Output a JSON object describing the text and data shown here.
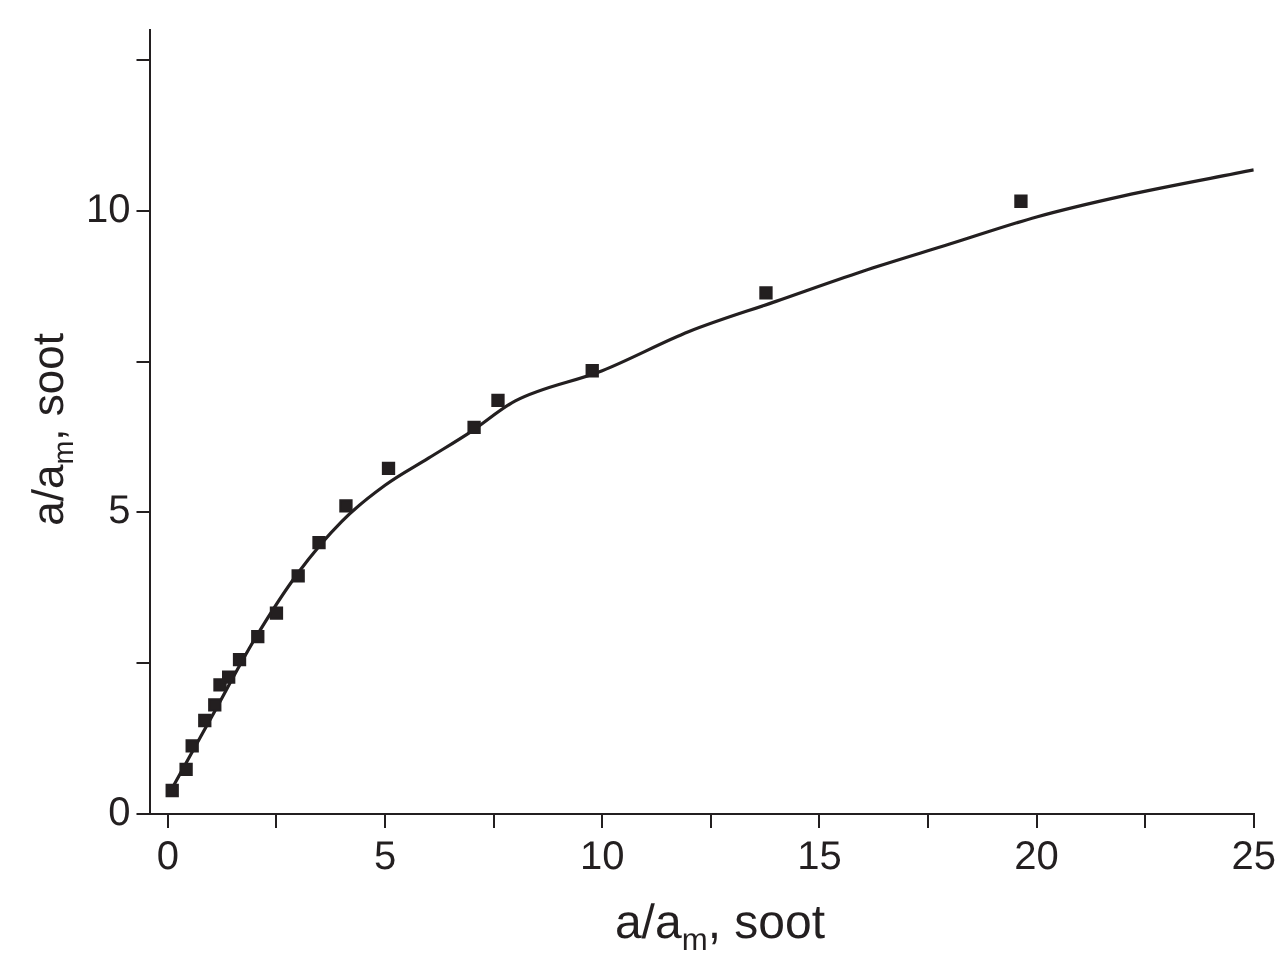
{
  "chart_data": {
    "type": "scatter",
    "xlabel": "a/a$_{m}$, soot",
    "ylabel": "a/a$_{m}$, soot",
    "xlim": [
      -0.4,
      25
    ],
    "ylim": [
      0,
      13
    ],
    "xticks": [
      0,
      {
        "value": 2.5,
        "label": null
      },
      5,
      {
        "value": 7.5,
        "label": null
      },
      10,
      {
        "value": 12.5,
        "label": null
      },
      15,
      {
        "value": 17.5,
        "label": null
      },
      20,
      {
        "value": 22.5,
        "label": null
      },
      25
    ],
    "yticks": [
      0,
      {
        "value": 2.5,
        "label": null
      },
      5,
      {
        "value": 7.5,
        "label": null
      },
      10,
      {
        "value": 12.5,
        "label": null
      }
    ],
    "grid": false,
    "legend": false,
    "series": [
      {
        "marker": "square",
        "color": "#231f20",
        "x": [
          0.1,
          0.42,
          0.56,
          0.85,
          1.08,
          1.2,
          1.4,
          1.65,
          2.07,
          2.5,
          3.0,
          3.48,
          4.1,
          5.08,
          7.05,
          7.6,
          9.77,
          13.77,
          19.64
        ],
        "values": [
          0.39,
          0.74,
          1.13,
          1.55,
          1.81,
          2.14,
          2.27,
          2.56,
          2.94,
          3.33,
          3.95,
          4.5,
          5.11,
          5.73,
          6.41,
          6.86,
          7.35,
          8.64,
          10.16
        ]
      },
      {
        "type": "line",
        "marker": "none",
        "color": "#231f20",
        "x": [
          0,
          1,
          2,
          3,
          4,
          5,
          6,
          7,
          8,
          10,
          12,
          14,
          16,
          18,
          20,
          22,
          25
        ],
        "values": [
          0.3,
          1.6,
          2.9,
          4.0,
          4.85,
          5.45,
          5.9,
          6.35,
          6.85,
          7.35,
          8.0,
          8.5,
          9.0,
          9.45,
          9.9,
          10.25,
          10.68
        ]
      }
    ]
  }
}
